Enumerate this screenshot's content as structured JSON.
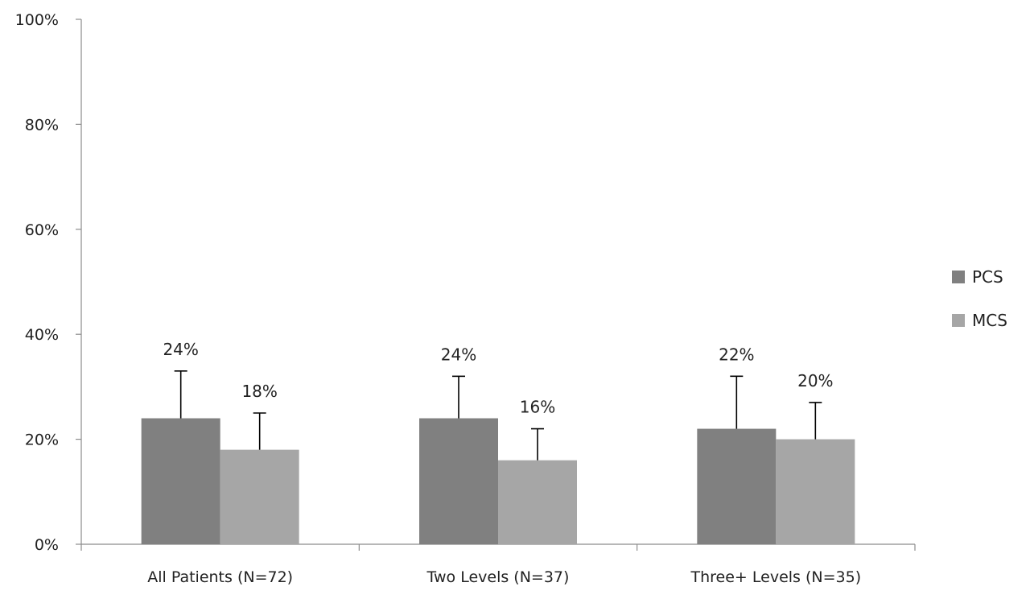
{
  "chart_data": {
    "type": "bar",
    "categories": [
      "All Patients (N=72)",
      "Two Levels (N=37)",
      "Three+ Levels (N=35)"
    ],
    "series": [
      {
        "name": "PCS",
        "values": [
          24,
          24,
          22
        ],
        "error_upper": [
          33,
          32,
          32
        ],
        "data_labels": [
          "24%",
          "24%",
          "22%"
        ],
        "color": "#808080"
      },
      {
        "name": "MCS",
        "values": [
          18,
          16,
          20
        ],
        "error_upper": [
          25,
          22,
          27
        ],
        "data_labels": [
          "18%",
          "16%",
          "20%"
        ],
        "color": "#a6a6a6"
      }
    ],
    "ylim": [
      0,
      100
    ],
    "yticks": [
      0,
      20,
      40,
      60,
      80,
      100
    ],
    "ytick_labels": [
      "0%",
      "20%",
      "40%",
      "60%",
      "80%",
      "100%"
    ],
    "title": "",
    "xlabel": "",
    "ylabel": "",
    "grid": false,
    "legend_position": "right"
  }
}
